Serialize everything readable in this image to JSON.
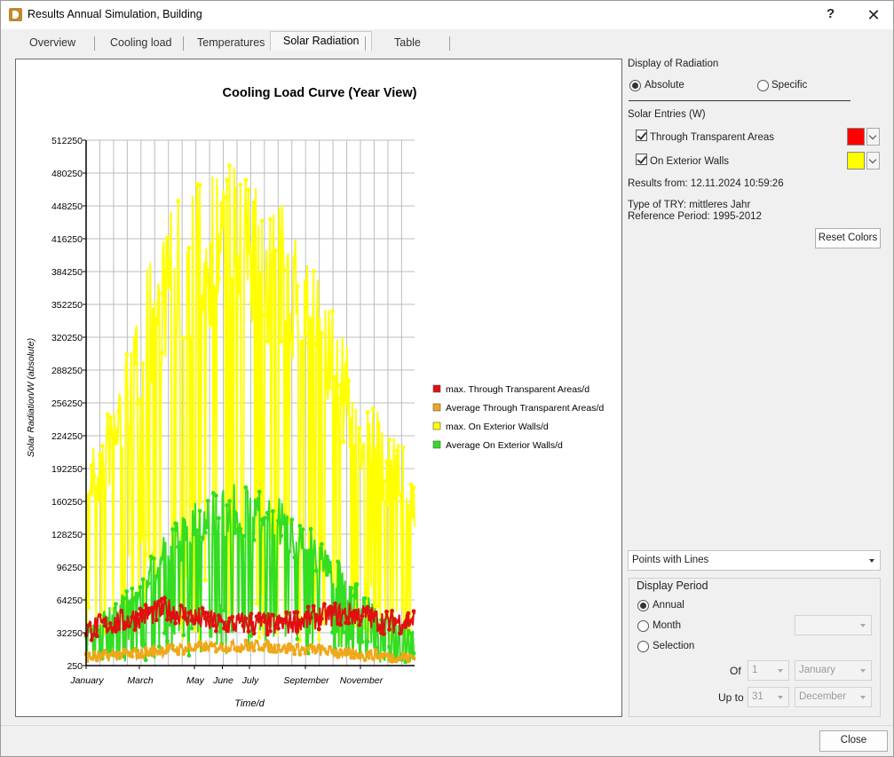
{
  "window": {
    "title": "Results Annual Simulation, Building",
    "help": "?",
    "close": "✕"
  },
  "tabs": [
    "Overview",
    "Cooling load",
    "Temperatures",
    "Solar Radiation",
    "Table"
  ],
  "active_tab": "Solar Radiation",
  "right_panel": {
    "display_of_radiation": "Display of Radiation",
    "absolute": "Absolute",
    "specific": "Specific",
    "solar_entries": "Solar Entries (W)",
    "through_transparent": "Through Transparent Areas",
    "on_exterior_walls": "On Exterior Walls",
    "results_from": "Results from: 12.11.2024 10:59:26",
    "type_of_try": "Type of TRY: mittleres Jahr",
    "reference_period": "Reference Period: 1995-2012",
    "reset_colors": "Reset Colors",
    "swatch_transparent_color": "#ff0000",
    "swatch_walls_color": "#ffff00",
    "display_style": "Points with Lines",
    "display_period": "Display Period",
    "annual": "Annual",
    "month": "Month",
    "selection": "Selection",
    "of": "Of",
    "up_to": "Up to",
    "of_day": "1",
    "of_month": "January",
    "upto_day": "31",
    "upto_month": "December"
  },
  "footer": {
    "close": "Close"
  },
  "chart_data": {
    "type": "line",
    "title": "Cooling Load Curve (Year View)",
    "xlabel": "Time/d",
    "ylabel": "Solar Radiation/W (absolute)",
    "ylim": [
      250,
      512250
    ],
    "yticks": [
      250,
      32250,
      64250,
      96250,
      128250,
      160250,
      192250,
      224250,
      256250,
      288250,
      320250,
      352250,
      384250,
      416250,
      448250,
      480250,
      512250
    ],
    "x_tick_labels": [
      {
        "label": "January",
        "day": 1
      },
      {
        "label": "March",
        "day": 60
      },
      {
        "label": "May",
        "day": 121
      },
      {
        "label": "June",
        "day": 152
      },
      {
        "label": "July",
        "day": 182
      },
      {
        "label": "September",
        "day": 244
      },
      {
        "label": "November",
        "day": 305
      }
    ],
    "xlim": [
      1,
      365
    ],
    "grid": true,
    "legend_position": "right",
    "series": [
      {
        "name": "max. Through Transparent Areas/d",
        "color": "#e01010",
        "envelope": [
          [
            1,
            35000
          ],
          [
            60,
            48000
          ],
          [
            90,
            55000
          ],
          [
            121,
            47000
          ],
          [
            152,
            40000
          ],
          [
            182,
            42000
          ],
          [
            213,
            40000
          ],
          [
            244,
            45000
          ],
          [
            274,
            50000
          ],
          [
            305,
            50000
          ],
          [
            335,
            42000
          ],
          [
            365,
            45000
          ]
        ],
        "noise": 12000
      },
      {
        "name": "Average Through Transparent Areas/d",
        "color": "#f0a818",
        "envelope": [
          [
            1,
            8000
          ],
          [
            60,
            12000
          ],
          [
            121,
            18000
          ],
          [
            182,
            20000
          ],
          [
            244,
            16000
          ],
          [
            305,
            11000
          ],
          [
            365,
            8000
          ]
        ],
        "noise": 5500
      },
      {
        "name": "max. On Exterior Walls/d",
        "color": "#ffff00",
        "envelope": [
          [
            1,
            200000
          ],
          [
            30,
            260000
          ],
          [
            60,
            370000
          ],
          [
            90,
            440000
          ],
          [
            121,
            480000
          ],
          [
            152,
            495000
          ],
          [
            182,
            480000
          ],
          [
            213,
            455000
          ],
          [
            244,
            430000
          ],
          [
            274,
            350000
          ],
          [
            305,
            280000
          ],
          [
            335,
            230000
          ],
          [
            365,
            200000
          ]
        ],
        "noise": 0.55
      },
      {
        "name": "Average On Exterior Walls/d",
        "color": "#33dd22",
        "envelope": [
          [
            1,
            40000
          ],
          [
            30,
            60000
          ],
          [
            60,
            90000
          ],
          [
            90,
            130000
          ],
          [
            121,
            160000
          ],
          [
            152,
            180000
          ],
          [
            182,
            175000
          ],
          [
            213,
            165000
          ],
          [
            244,
            140000
          ],
          [
            274,
            110000
          ],
          [
            305,
            75000
          ],
          [
            335,
            55000
          ],
          [
            365,
            40000
          ]
        ],
        "noise": 0.5
      }
    ]
  }
}
